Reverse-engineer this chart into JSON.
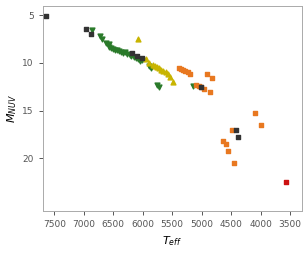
{
  "xlabel": "$T_{eff}$",
  "ylabel": "$M_{NUV}$",
  "xlim": [
    7700,
    3300
  ],
  "ylim": [
    25.5,
    4.0
  ],
  "xticks": [
    7500,
    7000,
    6500,
    6000,
    5500,
    5000,
    4500,
    4000,
    3500
  ],
  "yticks": [
    5,
    10,
    15,
    20
  ],
  "background_color": "#ffffff",
  "black_dots": {
    "color": "#333333",
    "marker": "s",
    "size": 8,
    "points": [
      [
        7650,
        5.1
      ],
      [
        6970,
        6.5
      ],
      [
        6880,
        7.0
      ],
      [
        6190,
        9.0
      ],
      [
        6100,
        9.3
      ],
      [
        6010,
        9.5
      ],
      [
        5010,
        12.5
      ],
      [
        4420,
        17.0
      ],
      [
        4380,
        17.8
      ]
    ]
  },
  "green_triangles_down": {
    "color": "#2a7a2a",
    "marker": "v",
    "size": 12,
    "points": [
      [
        6870,
        6.6
      ],
      [
        6730,
        7.2
      ],
      [
        6700,
        7.5
      ],
      [
        6620,
        7.9
      ],
      [
        6580,
        8.0
      ],
      [
        6570,
        8.3
      ],
      [
        6540,
        8.4
      ],
      [
        6500,
        8.5
      ],
      [
        6480,
        8.6
      ],
      [
        6440,
        8.7
      ],
      [
        6400,
        8.8
      ],
      [
        6370,
        8.9
      ],
      [
        6340,
        9.0
      ],
      [
        6300,
        8.9
      ],
      [
        6270,
        9.1
      ],
      [
        6220,
        9.2
      ],
      [
        6200,
        9.3
      ],
      [
        6150,
        9.4
      ],
      [
        6120,
        9.5
      ],
      [
        6080,
        9.6
      ],
      [
        6050,
        9.8
      ],
      [
        6020,
        9.7
      ],
      [
        5900,
        10.3
      ],
      [
        5860,
        10.5
      ],
      [
        5760,
        12.3
      ],
      [
        5720,
        12.5
      ],
      [
        5150,
        12.4
      ]
    ]
  },
  "yellow_green_triangles_up": {
    "color": "#c8b400",
    "marker": "^",
    "size": 12,
    "points": [
      [
        6080,
        7.5
      ],
      [
        5950,
        9.6
      ],
      [
        5900,
        10.0
      ],
      [
        5820,
        10.2
      ],
      [
        5790,
        10.3
      ],
      [
        5760,
        10.4
      ],
      [
        5720,
        10.5
      ],
      [
        5690,
        10.7
      ],
      [
        5650,
        10.8
      ],
      [
        5610,
        11.0
      ],
      [
        5580,
        11.2
      ],
      [
        5540,
        11.5
      ],
      [
        5480,
        12.0
      ]
    ]
  },
  "orange_squares": {
    "color": "#e87820",
    "marker": "s",
    "size": 12,
    "points": [
      [
        5380,
        10.5
      ],
      [
        5350,
        10.6
      ],
      [
        5310,
        10.7
      ],
      [
        5280,
        10.8
      ],
      [
        5240,
        11.0
      ],
      [
        5200,
        11.2
      ],
      [
        5090,
        12.3
      ],
      [
        5050,
        12.4
      ],
      [
        5010,
        12.5
      ],
      [
        4960,
        12.7
      ],
      [
        4910,
        11.2
      ],
      [
        4860,
        13.0
      ],
      [
        4820,
        11.6
      ],
      [
        4640,
        18.2
      ],
      [
        4590,
        18.5
      ],
      [
        4550,
        19.2
      ],
      [
        4490,
        17.0
      ],
      [
        4450,
        20.5
      ],
      [
        4100,
        15.2
      ],
      [
        3990,
        16.5
      ]
    ]
  },
  "red_dot": {
    "color": "#cc1111",
    "marker": "s",
    "size": 12,
    "points": [
      [
        3560,
        22.5
      ]
    ]
  }
}
